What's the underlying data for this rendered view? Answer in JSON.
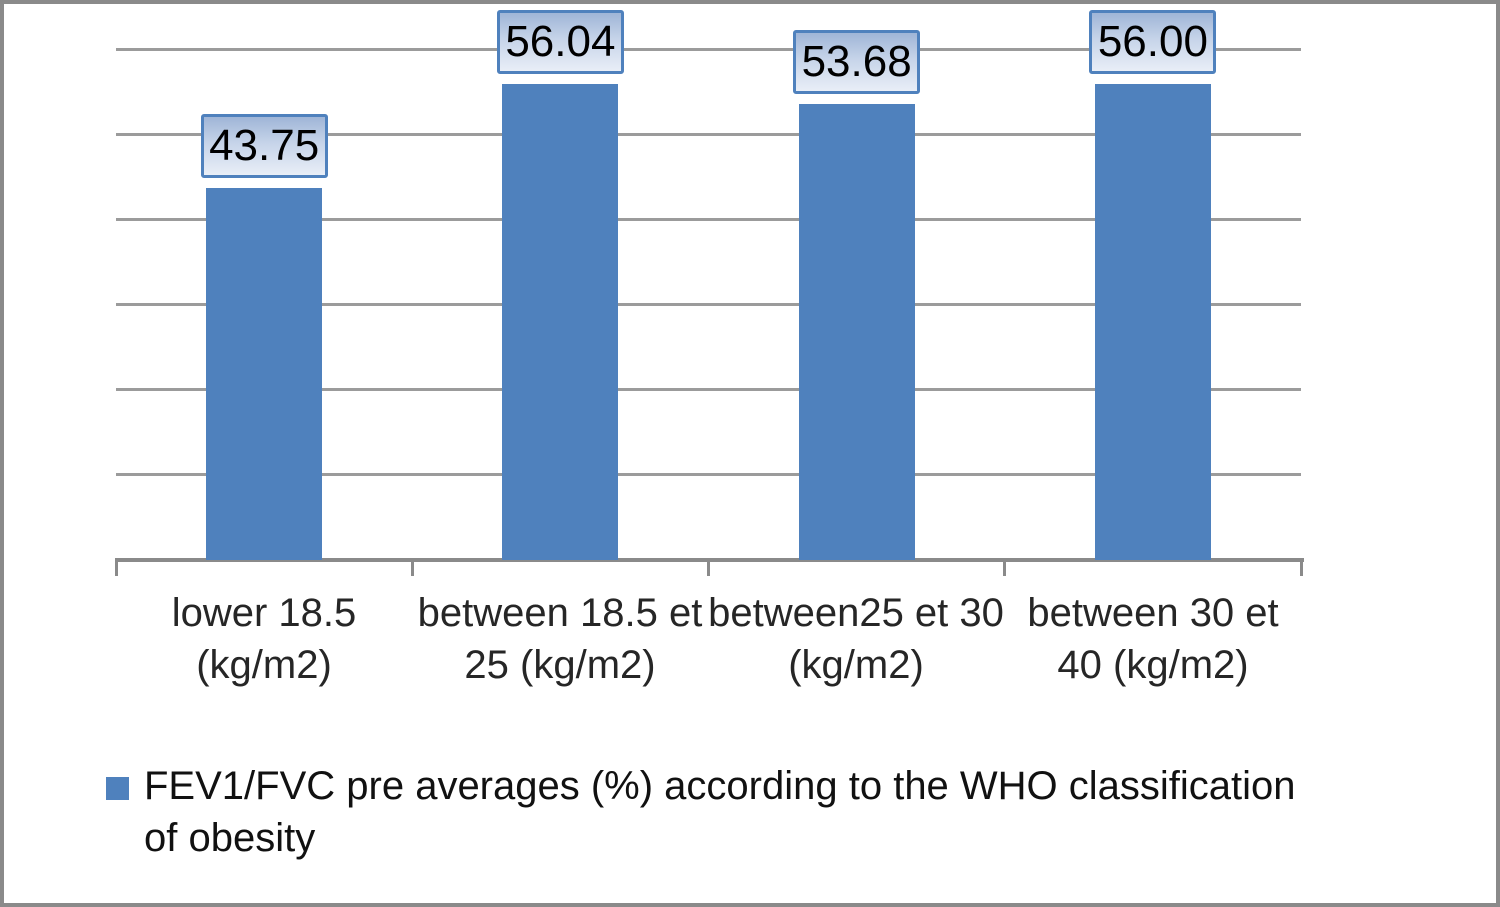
{
  "chart_data": {
    "type": "bar",
    "title": "",
    "xlabel": "",
    "ylabel": "",
    "categories": [
      "lower 18.5 (kg/m2)",
      "between 18.5 et 25 (kg/m2)",
      "between25 et 30 (kg/m2)",
      "between 30 et 40 (kg/m2)"
    ],
    "values": [
      43.75,
      56.04,
      53.68,
      56.0
    ],
    "value_labels": [
      "43.75",
      "56.04",
      "53.68",
      "56.00"
    ],
    "series_name": "FEV1/FVC pre averages (%) according to the WHO classification of obesity",
    "ylim": [
      0,
      60
    ],
    "y_major_unit": 10,
    "gridline_values": [
      60,
      50,
      40,
      30,
      20,
      10
    ],
    "grid": true,
    "y_axis_tick_labels_visible": false,
    "legend_position": "bottom-left",
    "colors": {
      "bar": "#4F81BD",
      "label_box_border": "#4F81BD",
      "label_box_gradient_top": "#9fb5d7",
      "label_box_gradient_bottom": "#e9eef7",
      "gridline": "#9b9b9b",
      "axis": "#8a8a8a",
      "frame_border": "#8a8a8a",
      "text": "#262626"
    }
  },
  "x_axis": {
    "tick_labels": [
      {
        "line1": "lower 18.5",
        "line2": "(kg/m2)"
      },
      {
        "line1": "between 18.5 et",
        "line2": "25 (kg/m2)"
      },
      {
        "line1": "between25 et 30",
        "line2": "(kg/m2)"
      },
      {
        "line1": "between 30 et",
        "line2": "40 (kg/m2)"
      }
    ]
  },
  "legend": {
    "marker": "blue-square",
    "line1": "FEV1/FVC pre averages (%) according to the WHO classification",
    "line2": "of obesity"
  }
}
